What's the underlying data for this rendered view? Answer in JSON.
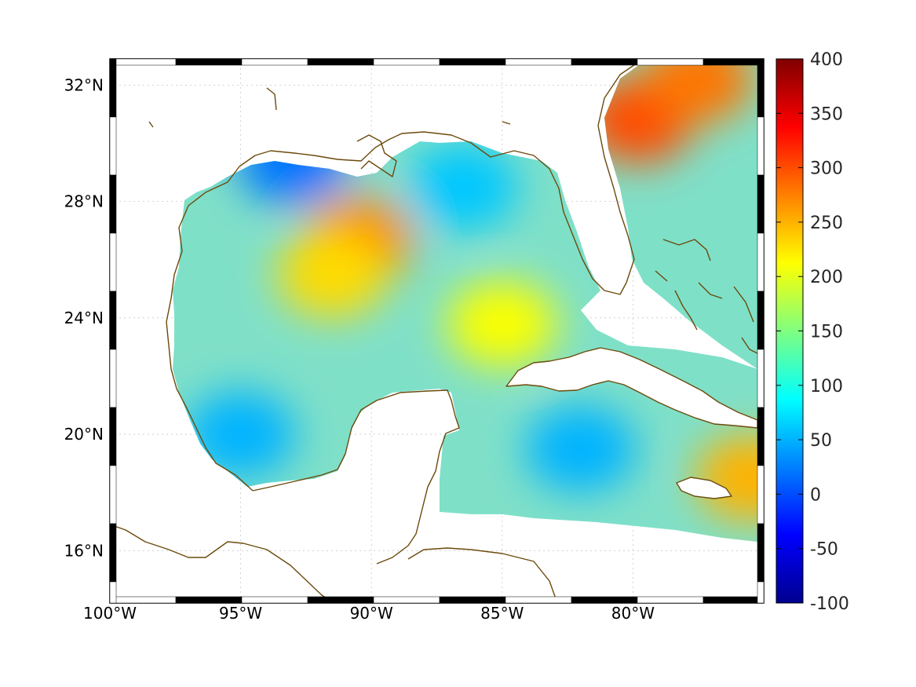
{
  "map": {
    "region": "Gulf of Mexico and western Caribbean",
    "lon_range": [
      -100,
      -75
    ],
    "lat_range": [
      14.2,
      32.9
    ],
    "lon_ticks": [
      {
        "value": -100,
        "label": "100°W"
      },
      {
        "value": -95,
        "label": "95°W"
      },
      {
        "value": -90,
        "label": "90°W"
      },
      {
        "value": -85,
        "label": "85°W"
      },
      {
        "value": -80,
        "label": "80°W"
      }
    ],
    "lat_ticks": [
      {
        "value": 32,
        "label": "32°N"
      },
      {
        "value": 28,
        "label": "28°N"
      },
      {
        "value": 24,
        "label": "24°N"
      },
      {
        "value": 20,
        "label": "20°N"
      },
      {
        "value": 16,
        "label": "16°N"
      }
    ],
    "grid": true,
    "coastline_color": "#6b4a0c",
    "frame_style": "alternating black-white ticked border"
  },
  "colorbar": {
    "colormap": "jet",
    "min": -100,
    "max": 400,
    "tick_labels": [
      "400",
      "350",
      "300",
      "250",
      "200",
      "150",
      "100",
      "50",
      "0",
      "-50",
      "-100"
    ],
    "tick_values": [
      400,
      350,
      300,
      250,
      200,
      150,
      100,
      50,
      0,
      -50,
      -100
    ],
    "placement": "right"
  },
  "field_features": [
    {
      "name": "northern shelf low",
      "lon": -93,
      "lat": 29.4,
      "value": 20
    },
    {
      "name": "southwest gulf low",
      "lon": -95,
      "lat": 20,
      "value": 50
    },
    {
      "name": "northeast gulf low",
      "lon": -86.5,
      "lat": 28.5,
      "value": 60
    },
    {
      "name": "loop current high",
      "lon": -90.5,
      "lat": 26.7,
      "value": 270
    },
    {
      "name": "central high",
      "lon": -91.5,
      "lat": 25.5,
      "value": 230
    },
    {
      "name": "yucatan channel high",
      "lon": -85,
      "lat": 23.8,
      "value": 210
    },
    {
      "name": "cayman low",
      "lon": -82,
      "lat": 19.5,
      "value": 50
    },
    {
      "name": "gulf stream high",
      "lon": -79.8,
      "lat": 30.8,
      "value": 300
    },
    {
      "name": "atlantic high",
      "lon": -77.5,
      "lat": 32.2,
      "value": 280
    },
    {
      "name": "windward passage high",
      "lon": -75.5,
      "lat": 18.5,
      "value": 250
    }
  ]
}
